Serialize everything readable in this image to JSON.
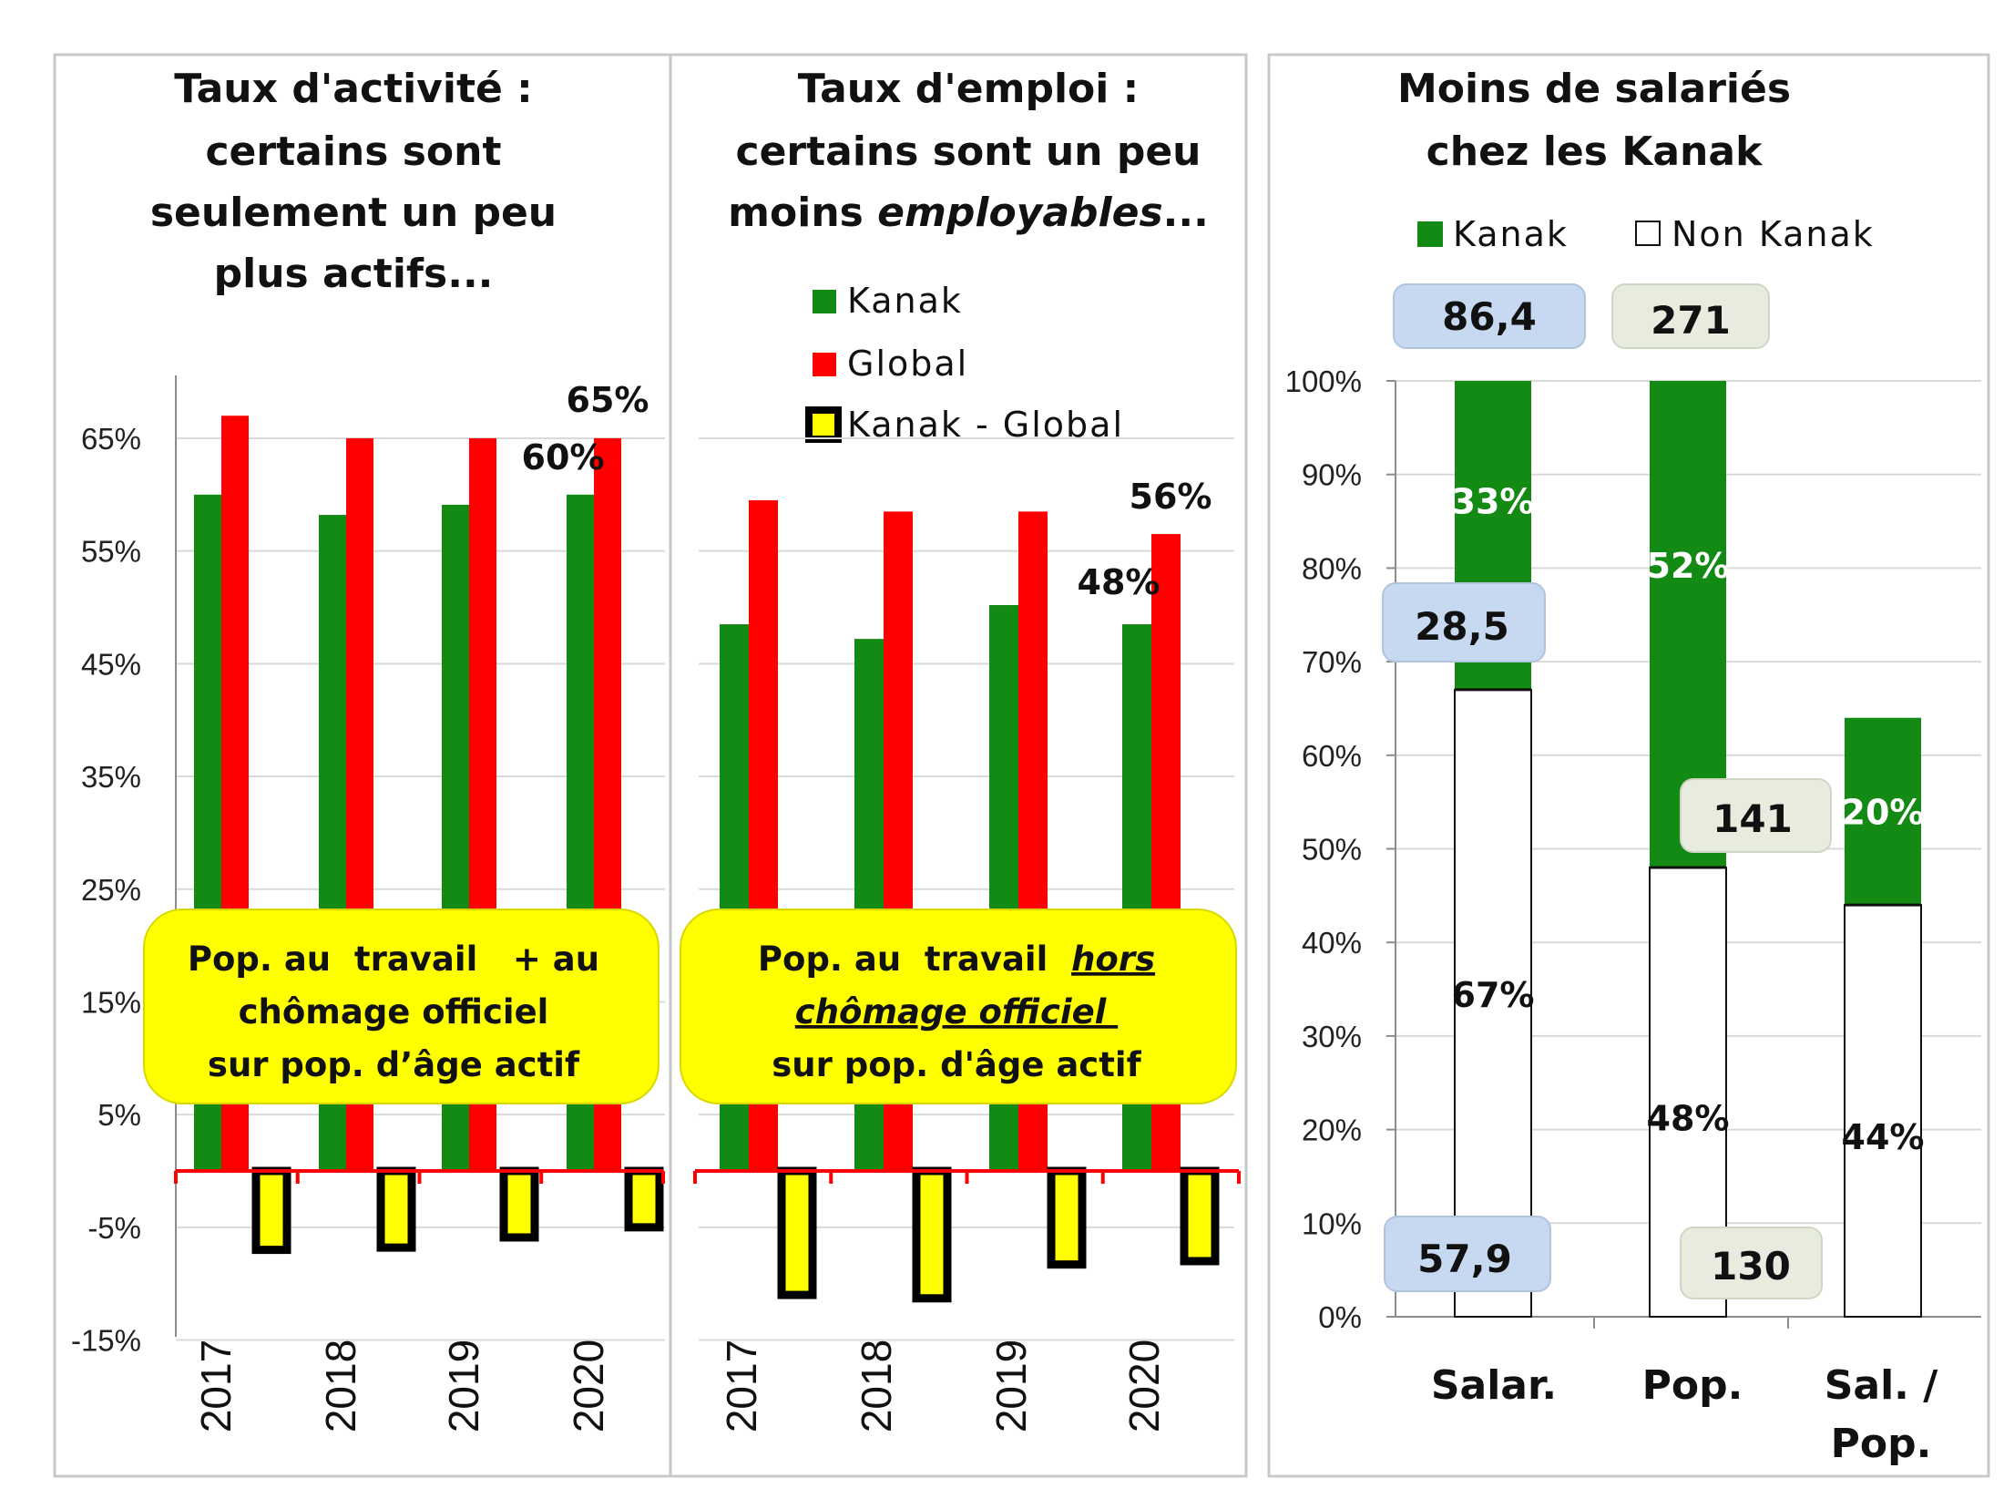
{
  "colors": {
    "kanak": "#138a13",
    "global": "#ff0000",
    "diff_fill": "#ffff00",
    "diff_stroke": "#000000",
    "non_kanak": "#ffffff",
    "note_bg": "#ffff00",
    "callout_blue": "#c6d9f1",
    "callout_grey": "#e8ecdf"
  },
  "chart_data": [
    {
      "type": "bar",
      "title": [
        "Taux d'activité :",
        "certains sont",
        "seulement un peu",
        "plus actifs..."
      ],
      "categories": [
        "2017",
        "2018",
        "2019",
        "2020"
      ],
      "ylim": [
        -15,
        70
      ],
      "yticks": [
        "65%",
        "55%",
        "45%",
        "35%",
        "25%",
        "15%",
        "5%",
        "-5%",
        "-15%"
      ],
      "ytick_values": [
        65,
        55,
        45,
        35,
        25,
        15,
        5,
        -5,
        -15
      ],
      "series": [
        {
          "name": "Kanak",
          "values": [
            60,
            58.2,
            59.1,
            60
          ]
        },
        {
          "name": "Global",
          "values": [
            67,
            65,
            65,
            65
          ]
        },
        {
          "name": "Kanak - Global",
          "values": [
            -7,
            -6.8,
            -5.9,
            -5
          ]
        }
      ],
      "data_labels": [
        "60%",
        "65%"
      ],
      "note": [
        "Pop. au  travail   + au",
        "chômage officiel",
        "sur pop. d’âge actif"
      ]
    },
    {
      "type": "bar",
      "title": [
        "Taux d'emploi :",
        "certains sont un peu",
        "moins ",
        "employables",
        "..."
      ],
      "categories": [
        "2017",
        "2018",
        "2019",
        "2020"
      ],
      "ylim": [
        -15,
        70
      ],
      "legend": [
        "Kanak",
        "Global",
        "Kanak - Global"
      ],
      "series": [
        {
          "name": "Kanak",
          "values": [
            48.5,
            47.2,
            50.2,
            48.5
          ]
        },
        {
          "name": "Global",
          "values": [
            59.5,
            58.5,
            58.5,
            56.5
          ]
        },
        {
          "name": "Kanak - Global",
          "values": [
            -11,
            -11.3,
            -8.3,
            -8
          ]
        }
      ],
      "data_labels": [
        "48%",
        "56%"
      ],
      "note": [
        "Pop. au  travail  ",
        "hors",
        "chômage officiel ",
        "sur pop. d'âge actif"
      ]
    },
    {
      "type": "bar",
      "stacked": true,
      "title": [
        "Moins de salariés",
        "chez les Kanak"
      ],
      "legend": [
        "Kanak",
        "Non Kanak"
      ],
      "categories": [
        "Salar.",
        "Pop.",
        [
          "Sal. /",
          "Pop."
        ]
      ],
      "ylim": [
        0,
        100
      ],
      "yticks": [
        "100%",
        "90%",
        "80%",
        "70%",
        "60%",
        "50%",
        "40%",
        "30%",
        "20%",
        "10%",
        "0%"
      ],
      "ytick_values": [
        100,
        90,
        80,
        70,
        60,
        50,
        40,
        30,
        20,
        10,
        0
      ],
      "series": [
        {
          "name": "Non Kanak",
          "values": [
            67,
            48,
            44
          ],
          "labels": [
            "67%",
            "48%",
            "44%"
          ]
        },
        {
          "name": "Kanak",
          "values": [
            33,
            52,
            20
          ],
          "labels": [
            "33%",
            "52%",
            "20%"
          ]
        }
      ],
      "callouts": [
        "86,4",
        "271",
        "28,5",
        "141",
        "57,9",
        "130"
      ]
    }
  ]
}
